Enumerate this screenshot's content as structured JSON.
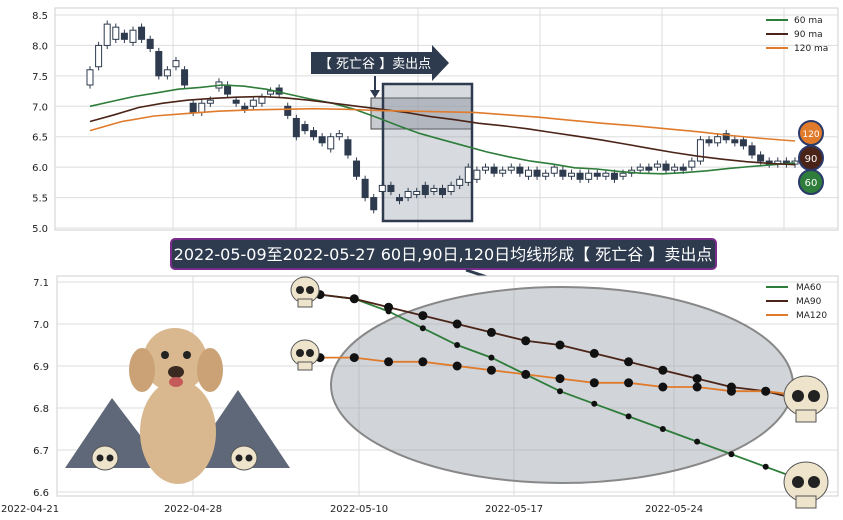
{
  "chart_data": [
    {
      "type": "candlestick",
      "ylim": [
        5.0,
        8.55
      ],
      "y_ticks": [
        "8.5",
        "8.0",
        "7.5",
        "7.0",
        "6.5",
        "6.0",
        "5.5",
        "5.0"
      ],
      "grid": true,
      "legend_position": "top-right",
      "legend": [
        {
          "label": "60 ma",
          "color": "#2e7d3a"
        },
        {
          "label": "90 ma",
          "color": "#4a2418"
        },
        {
          "label": "120 ma",
          "color": "#e07b2c"
        }
      ],
      "annotation": "【 死亡谷 】卖出点",
      "ma_badges": [
        {
          "label": "120",
          "color": "#e07b2c",
          "value": 6.53
        },
        {
          "label": "90",
          "color": "#4a2418",
          "value": 6.15
        },
        {
          "label": "60",
          "color": "#2e7d3a",
          "value": 5.74
        }
      ],
      "candles": [
        [
          7.35,
          7.6
        ],
        [
          7.65,
          8.0
        ],
        [
          8.0,
          8.35
        ],
        [
          8.1,
          8.3
        ],
        [
          8.2,
          8.1
        ],
        [
          8.05,
          8.25
        ],
        [
          8.3,
          8.1
        ],
        [
          8.1,
          7.95
        ],
        [
          7.9,
          7.5
        ],
        [
          7.5,
          7.6
        ],
        [
          7.65,
          7.75
        ],
        [
          7.6,
          7.35
        ],
        [
          7.05,
          6.9
        ],
        [
          6.9,
          7.05
        ],
        [
          7.05,
          7.1
        ],
        [
          7.3,
          7.4
        ],
        [
          7.35,
          7.2
        ],
        [
          7.1,
          7.05
        ],
        [
          7.0,
          6.95
        ],
        [
          7.0,
          7.1
        ],
        [
          7.05,
          7.15
        ],
        [
          7.2,
          7.25
        ],
        [
          7.3,
          7.2
        ],
        [
          7.0,
          6.85
        ],
        [
          6.8,
          6.5
        ],
        [
          6.7,
          6.6
        ],
        [
          6.6,
          6.5
        ],
        [
          6.5,
          6.4
        ],
        [
          6.3,
          6.5
        ],
        [
          6.5,
          6.55
        ],
        [
          6.45,
          6.2
        ],
        [
          6.1,
          5.85
        ],
        [
          5.8,
          5.5
        ],
        [
          5.5,
          5.3
        ],
        [
          5.6,
          5.7
        ],
        [
          5.7,
          5.6
        ],
        [
          5.5,
          5.45
        ],
        [
          5.5,
          5.6
        ],
        [
          5.55,
          5.6
        ],
        [
          5.7,
          5.55
        ],
        [
          5.6,
          5.65
        ],
        [
          5.65,
          5.55
        ],
        [
          5.6,
          5.7
        ],
        [
          5.7,
          5.8
        ],
        [
          5.75,
          6.0
        ],
        [
          5.8,
          5.95
        ],
        [
          5.95,
          6.0
        ],
        [
          6.0,
          5.9
        ],
        [
          5.9,
          5.95
        ],
        [
          5.95,
          6.0
        ],
        [
          6.0,
          5.9
        ],
        [
          5.85,
          5.95
        ],
        [
          5.95,
          5.85
        ],
        [
          5.85,
          5.9
        ],
        [
          5.9,
          6.0
        ],
        [
          5.95,
          5.85
        ],
        [
          5.85,
          5.9
        ],
        [
          5.9,
          5.8
        ],
        [
          5.8,
          5.9
        ],
        [
          5.9,
          5.85
        ],
        [
          5.85,
          5.9
        ],
        [
          5.9,
          5.8
        ],
        [
          5.85,
          5.9
        ],
        [
          5.9,
          5.95
        ],
        [
          5.95,
          6.0
        ],
        [
          6.0,
          5.95
        ],
        [
          6.0,
          6.05
        ],
        [
          6.05,
          5.95
        ],
        [
          5.95,
          6.0
        ],
        [
          6.0,
          5.95
        ],
        [
          6.0,
          6.1
        ],
        [
          6.1,
          6.45
        ],
        [
          6.45,
          6.4
        ],
        [
          6.4,
          6.5
        ],
        [
          6.55,
          6.45
        ],
        [
          6.45,
          6.4
        ],
        [
          6.45,
          6.35
        ],
        [
          6.35,
          6.2
        ],
        [
          6.2,
          6.1
        ],
        [
          6.1,
          6.05
        ],
        [
          6.05,
          6.1
        ],
        [
          6.1,
          6.05
        ],
        [
          6.05,
          6.1
        ]
      ],
      "ma60": [
        7.0,
        7.08,
        7.16,
        7.22,
        7.28,
        7.31,
        7.35,
        7.33,
        7.28,
        7.2,
        7.12,
        7.05,
        6.95,
        6.82,
        6.68,
        6.55,
        6.45,
        6.35,
        6.25,
        6.17,
        6.1,
        6.05,
        5.99,
        5.97,
        5.93,
        5.9,
        5.89,
        5.91,
        5.94,
        5.98,
        6.01,
        6.04,
        6.07
      ],
      "ma90": [
        6.75,
        6.86,
        6.98,
        7.05,
        7.1,
        7.13,
        7.15,
        7.16,
        7.14,
        7.1,
        7.05,
        7.0,
        6.95,
        6.9,
        6.83,
        6.78,
        6.72,
        6.68,
        6.63,
        6.57,
        6.51,
        6.45,
        6.38,
        6.31,
        6.24,
        6.18,
        6.13,
        6.09,
        6.06,
        6.04
      ],
      "ma120": [
        6.6,
        6.75,
        6.84,
        6.88,
        6.92,
        6.94,
        6.95,
        6.96,
        6.95,
        6.93,
        6.92,
        6.91,
        6.9,
        6.86,
        6.82,
        6.77,
        6.72,
        6.68,
        6.63,
        6.58,
        6.52,
        6.47,
        6.43
      ]
    },
    {
      "type": "line",
      "title": "2022-05-09至2022-05-27 60日,90日,120日均线形成【 死亡谷 】卖出点",
      "ylim": [
        6.59,
        7.12
      ],
      "y_ticks": [
        "7.1",
        "7.0",
        "6.9",
        "6.8",
        "6.7",
        "6.6"
      ],
      "x_ticks": [
        "2022-04-21",
        "2022-04-28",
        "2022-05-10",
        "2022-05-17",
        "2022-05-24"
      ],
      "grid": true,
      "legend_position": "top-right",
      "series": [
        {
          "name": "MA60",
          "color": "#2e7d3a",
          "x": [
            0,
            1,
            2,
            3,
            4,
            5,
            6,
            7,
            8,
            9,
            10,
            11,
            12,
            13,
            14
          ],
          "values": [
            7.07,
            7.06,
            7.03,
            6.99,
            6.95,
            6.92,
            6.88,
            6.84,
            6.81,
            6.78,
            6.75,
            6.72,
            6.69,
            6.66,
            6.63
          ]
        },
        {
          "name": "MA90",
          "color": "#4a2418",
          "x": [
            0,
            1,
            2,
            3,
            4,
            5,
            6,
            7,
            8,
            9,
            10,
            11,
            12,
            13,
            14
          ],
          "values": [
            7.07,
            7.06,
            7.04,
            7.02,
            7.0,
            6.98,
            6.96,
            6.95,
            6.93,
            6.91,
            6.89,
            6.87,
            6.85,
            6.84,
            6.82
          ]
        },
        {
          "name": "MA120",
          "color": "#e07b2c",
          "x": [
            0,
            1,
            2,
            3,
            4,
            5,
            6,
            7,
            8,
            9,
            10,
            11,
            12,
            13,
            14
          ],
          "values": [
            6.92,
            6.92,
            6.91,
            6.91,
            6.9,
            6.89,
            6.88,
            6.87,
            6.86,
            6.86,
            6.85,
            6.85,
            6.84,
            6.84,
            6.83
          ]
        }
      ]
    }
  ]
}
